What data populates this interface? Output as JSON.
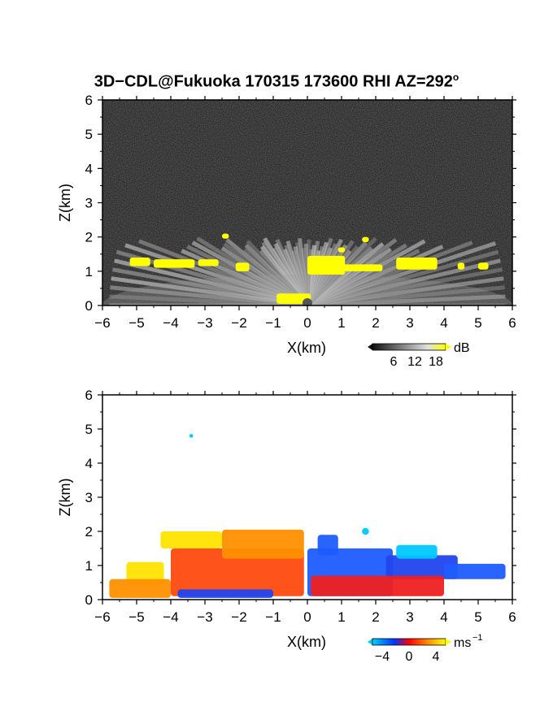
{
  "figure": {
    "title_main": "3D−CDL@Fukuoka 170315 173600 RHI AZ=292",
    "title_degree": "o"
  },
  "chart_data": [
    {
      "type": "heatmap",
      "panel": "reflectivity",
      "xlabel": "X(km)",
      "ylabel": "Z(km)",
      "xlim": [
        -6,
        6
      ],
      "ylim": [
        0,
        6
      ],
      "x_ticks": [
        -6,
        -5,
        -4,
        -3,
        -2,
        -1,
        0,
        1,
        2,
        3,
        4,
        5,
        6
      ],
      "y_ticks": [
        0,
        1,
        2,
        3,
        4,
        5,
        6
      ],
      "colorbar": {
        "unit": "dB",
        "ticks": [
          6,
          12,
          18
        ],
        "colors": [
          "#111111",
          "#bdbdbd",
          "#ffff00"
        ]
      },
      "background_color": "#262626",
      "echo_top_km": 2.0,
      "yellow_regions": [
        {
          "x": [
            -5.2,
            -4.6
          ],
          "z": [
            1.15,
            1.4
          ]
        },
        {
          "x": [
            -4.5,
            -3.3
          ],
          "z": [
            1.1,
            1.35
          ]
        },
        {
          "x": [
            -3.2,
            -2.6
          ],
          "z": [
            1.15,
            1.35
          ]
        },
        {
          "x": [
            -2.5,
            -2.3
          ],
          "z": [
            1.95,
            2.1
          ]
        },
        {
          "x": [
            -2.1,
            -1.7
          ],
          "z": [
            1.0,
            1.25
          ]
        },
        {
          "x": [
            0.0,
            1.1
          ],
          "z": [
            0.9,
            1.45
          ]
        },
        {
          "x": [
            1.0,
            2.2
          ],
          "z": [
            1.0,
            1.2
          ]
        },
        {
          "x": [
            0.9,
            1.1
          ],
          "z": [
            1.55,
            1.7
          ]
        },
        {
          "x": [
            1.6,
            1.8
          ],
          "z": [
            1.85,
            2.0
          ]
        },
        {
          "x": [
            2.6,
            3.8
          ],
          "z": [
            1.05,
            1.4
          ]
        },
        {
          "x": [
            4.4,
            4.6
          ],
          "z": [
            1.05,
            1.25
          ]
        },
        {
          "x": [
            5.0,
            5.3
          ],
          "z": [
            1.05,
            1.25
          ]
        },
        {
          "x": [
            -0.9,
            0.1
          ],
          "z": [
            0.05,
            0.35
          ]
        }
      ]
    },
    {
      "type": "heatmap",
      "panel": "doppler_velocity",
      "xlabel": "X(km)",
      "ylabel": "Z(km)",
      "xlim": [
        -6,
        6
      ],
      "ylim": [
        0,
        6
      ],
      "x_ticks": [
        -6,
        -5,
        -4,
        -3,
        -2,
        -1,
        0,
        1,
        2,
        3,
        4,
        5,
        6
      ],
      "y_ticks": [
        0,
        1,
        2,
        3,
        4,
        5,
        6
      ],
      "colorbar": {
        "unit": "ms",
        "unit_exp": "−1",
        "ticks": [
          -4,
          0,
          4
        ],
        "tick_labels": [
          "−4",
          "0",
          "4"
        ],
        "colors": [
          "#00c8ff",
          "#0033ff",
          "#ff0000",
          "#ff8800",
          "#ffff00"
        ]
      },
      "regions": [
        {
          "x": [
            -5.3,
            -4.2
          ],
          "z": [
            0.4,
            1.1
          ],
          "value": 4
        },
        {
          "x": [
            -4.3,
            -2.5
          ],
          "z": [
            1.5,
            2.0
          ],
          "value": 4
        },
        {
          "x": [
            -4.0,
            -0.1
          ],
          "z": [
            0.1,
            1.5
          ],
          "value": 2
        },
        {
          "x": [
            -2.5,
            -0.1
          ],
          "z": [
            1.2,
            2.05
          ],
          "value": 3
        },
        {
          "x": [
            -5.8,
            -4.0
          ],
          "z": [
            0.05,
            0.6
          ],
          "value": 3
        },
        {
          "x": [
            -3.8,
            -1.0
          ],
          "z": [
            0.05,
            0.3
          ],
          "value": -2
        },
        {
          "x": [
            0.0,
            2.5
          ],
          "z": [
            0.1,
            1.5
          ],
          "value": -3
        },
        {
          "x": [
            2.3,
            4.4
          ],
          "z": [
            0.6,
            1.3
          ],
          "value": -2
        },
        {
          "x": [
            0.1,
            4.0
          ],
          "z": [
            0.1,
            0.7
          ],
          "value": 1
        },
        {
          "x": [
            4.0,
            5.8
          ],
          "z": [
            0.6,
            1.05
          ],
          "value": -3
        },
        {
          "x": [
            0.3,
            0.9
          ],
          "z": [
            1.3,
            1.9
          ],
          "value": -3
        },
        {
          "x": [
            1.6,
            1.8
          ],
          "z": [
            1.9,
            2.1
          ],
          "value": -4
        },
        {
          "x": [
            2.6,
            3.8
          ],
          "z": [
            1.2,
            1.6
          ],
          "value": -4
        }
      ],
      "isolated_points": [
        {
          "x": -3.4,
          "z": 4.8,
          "value": -4
        }
      ]
    }
  ]
}
